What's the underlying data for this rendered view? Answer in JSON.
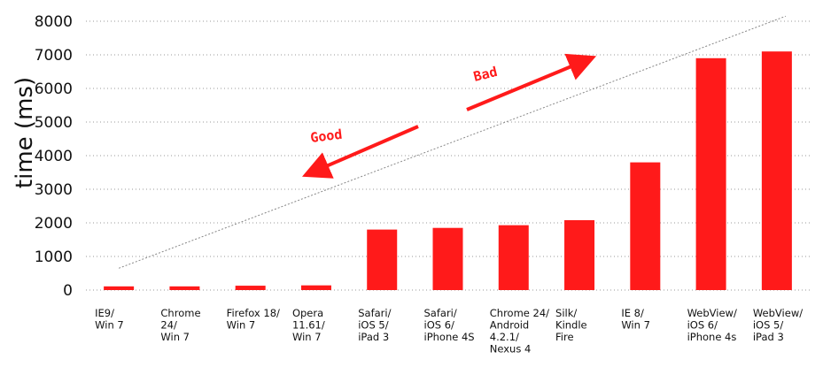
{
  "chart_data": {
    "type": "bar",
    "ylabel": "time (ms)",
    "ylim": [
      0,
      8000
    ],
    "yticks": [
      0,
      1000,
      2000,
      3000,
      4000,
      5000,
      6000,
      7000,
      8000
    ],
    "grid": true,
    "bar_color": "#ff1a1a",
    "categories": [
      [
        "IE9/",
        "Win 7"
      ],
      [
        "Chrome",
        "24/",
        "Win 7"
      ],
      [
        "Firefox 18/",
        "Win 7"
      ],
      [
        "Opera",
        "11.61/",
        "Win 7"
      ],
      [
        "Safari/",
        "iOS 5/",
        "iPad 3"
      ],
      [
        "Safari/",
        "iOS 6/",
        "iPhone 4S"
      ],
      [
        "Chrome 24/",
        "Android",
        "4.2.1/",
        "Nexus 4"
      ],
      [
        "Silk/",
        "Kindle",
        "Fire"
      ],
      [
        "IE 8/",
        "Win 7"
      ],
      [
        "WebView/",
        "iOS 6/",
        "iPhone 4s"
      ],
      [
        "WebView/",
        "iOS 5/",
        "iPad 3"
      ]
    ],
    "values": [
      110,
      110,
      130,
      140,
      1800,
      1850,
      1930,
      2080,
      3800,
      6900,
      7100
    ],
    "trendline": {
      "from": [
        0,
        650
      ],
      "to": [
        10,
        8150
      ],
      "color": "#888888"
    },
    "annotations": [
      {
        "text": "Bad",
        "color": "#ff1a1a",
        "arrow": "up-right"
      },
      {
        "text": "Good",
        "color": "#ff1a1a",
        "arrow": "down-left"
      }
    ]
  }
}
